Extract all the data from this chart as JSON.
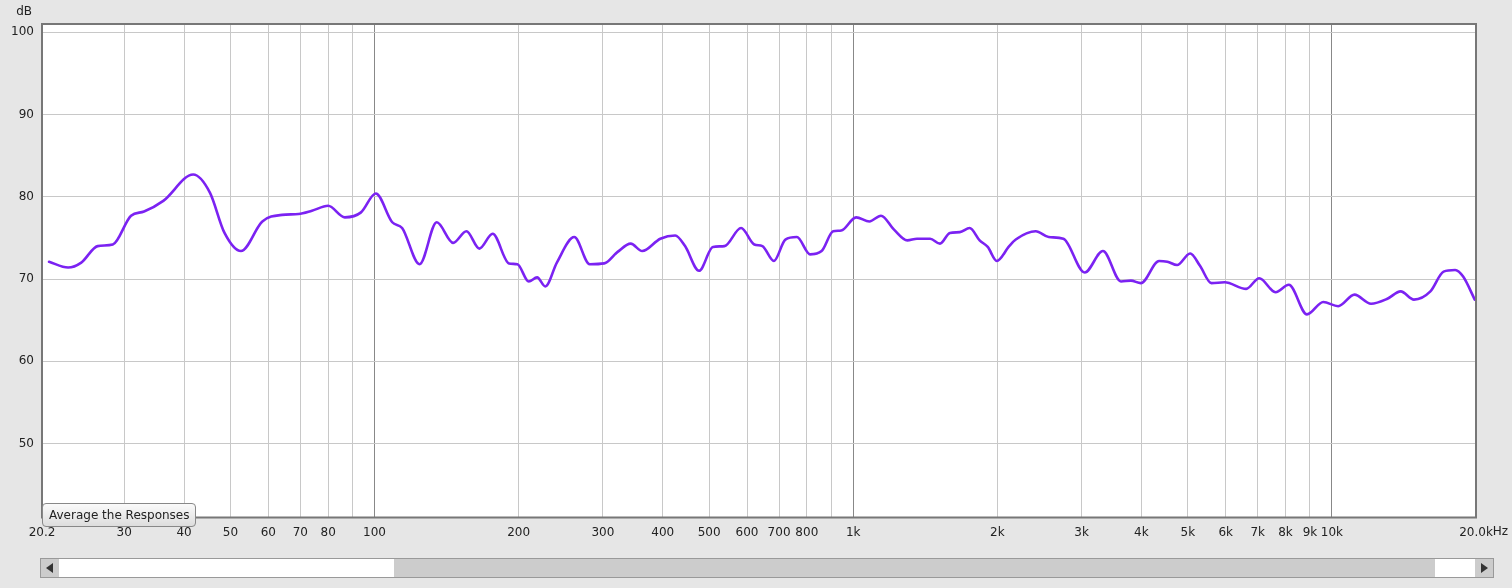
{
  "chart_data": {
    "type": "line",
    "ylabel": "dB",
    "annotations": [
      "Average the Responses"
    ],
    "xlim": [
      20.2,
      20000
    ],
    "ylim": [
      41,
      101
    ],
    "xticks": [
      {
        "value": 20.2,
        "label": "20.2"
      },
      30,
      40,
      50,
      60,
      70,
      80,
      {
        "value": 90,
        "label": null
      },
      100,
      200,
      300,
      400,
      500,
      600,
      700,
      800,
      {
        "value": 900,
        "label": null
      },
      {
        "value": 1000,
        "label": "1k"
      },
      {
        "value": 2000,
        "label": "2k"
      },
      {
        "value": 3000,
        "label": "3k"
      },
      {
        "value": 4000,
        "label": "4k"
      },
      {
        "value": 5000,
        "label": "5k"
      },
      {
        "value": 6000,
        "label": "6k"
      },
      {
        "value": 7000,
        "label": "7k"
      },
      {
        "value": 8000,
        "label": "8k"
      },
      {
        "value": 9000,
        "label": "9k"
      },
      {
        "value": 10000,
        "label": "10k"
      },
      {
        "value": 20000,
        "label": "20.0k"
      }
    ],
    "xlabel": "Hz",
    "yticks": [
      50,
      60,
      70,
      80,
      90,
      100
    ],
    "log": "x",
    "grid": true,
    "legend": false,
    "marker": "none",
    "line_style": "solid",
    "series": [
      {
        "color": "#7b22f2",
        "x": [
          20.9,
          22.9,
          24.4,
          26.4,
          28.4,
          31.0,
          33.0,
          36.2,
          41.8,
          45.3,
          48.6,
          52.6,
          58.3,
          64.1,
          69.4,
          74.0,
          80.0,
          86.7,
          93.7,
          100.6,
          108.9,
          114.2,
          124.2,
          134.9,
          146,
          155.6,
          165.6,
          176.5,
          190.9,
          198.8,
          210,
          218.6,
          227.4,
          240.4,
          261.4,
          281.5,
          302,
          322,
          342.9,
          362.4,
          395.4,
          424.8,
          445.4,
          476.4,
          509.3,
          538.3,
          583.1,
          621.4,
          646,
          682.8,
          721.6,
          762.6,
          812.4,
          859,
          908,
          944,
          1014,
          1081,
          1143,
          1217,
          1297,
          1359,
          1448,
          1518,
          1592,
          1670,
          1751,
          1837,
          1910,
          1995,
          2118,
          2186,
          2406,
          2561,
          2748,
          3045,
          3324,
          3626,
          3802,
          3989,
          4355,
          4531,
          4749,
          5058,
          5302,
          5601,
          5970,
          6621,
          7050,
          7627,
          8129,
          8871,
          9594,
          10306,
          11150,
          12070,
          13060,
          13920,
          14840,
          16060,
          17110,
          18090,
          18800,
          19880
        ],
        "values": [
          72.1,
          71.4,
          72.0,
          74.0,
          74.2,
          77.7,
          78.2,
          79.5,
          82.7,
          80.5,
          75.6,
          73.4,
          77.0,
          77.8,
          77.9,
          78.3,
          78.9,
          77.5,
          78.1,
          80.4,
          76.9,
          76.2,
          71.8,
          76.9,
          74.4,
          75.8,
          73.7,
          75.5,
          71.9,
          71.8,
          69.7,
          70.2,
          69.1,
          72.0,
          75.1,
          71.8,
          71.9,
          73.3,
          74.3,
          73.4,
          74.9,
          75.3,
          74.0,
          71.0,
          73.9,
          74.0,
          76.2,
          74.2,
          74.0,
          72.2,
          74.8,
          75.1,
          73.0,
          73.4,
          75.8,
          75.9,
          77.5,
          77.0,
          77.7,
          76.0,
          74.7,
          74.9,
          74.9,
          74.3,
          75.6,
          75.7,
          76.2,
          74.7,
          73.9,
          72.2,
          74.0,
          74.8,
          75.8,
          75.1,
          74.9,
          70.8,
          73.4,
          69.7,
          69.8,
          69.5,
          72.2,
          72.1,
          71.7,
          73.1,
          71.6,
          69.5,
          69.6,
          68.8,
          70.1,
          68.4,
          69.3,
          65.7,
          67.2,
          66.7,
          68.1,
          67.0,
          67.6,
          68.5,
          67.5,
          68.5,
          70.9,
          71.1,
          70.3,
          67.5
        ]
      }
    ]
  }
}
